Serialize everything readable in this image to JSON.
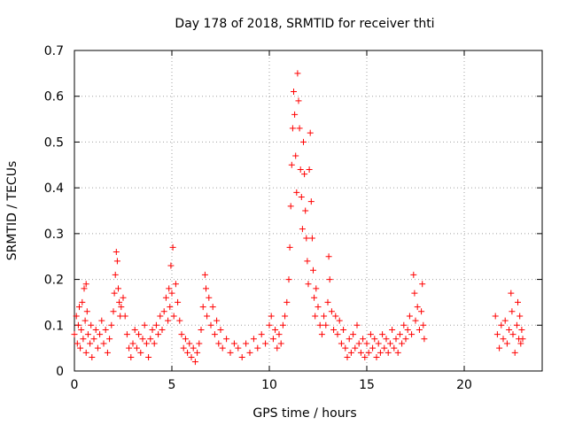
{
  "chart_data": {
    "type": "scatter",
    "title": "Day 178 of 2018, SRMTID for receiver thti",
    "xlabel": "GPS time / hours",
    "ylabel": "SRMTID / TECUs",
    "xlim": [
      0,
      24
    ],
    "ylim": [
      0,
      0.7
    ],
    "xticks": [
      0,
      5,
      10,
      15,
      20
    ],
    "xtick_labels": [
      "0",
      "5",
      "10",
      "15",
      "20"
    ],
    "yticks": [
      0,
      0.1,
      0.2,
      0.3,
      0.4,
      0.5,
      0.6,
      0.7
    ],
    "ytick_labels": [
      "0",
      "0.1",
      "0.2",
      "0.3",
      "0.4",
      "0.5",
      "0.6",
      "0.7"
    ],
    "grid": true,
    "marker": "+",
    "marker_color": "#ff0000",
    "series": [
      {
        "name": "SRMTID",
        "points": [
          [
            0.0,
            0.08
          ],
          [
            0.1,
            0.12
          ],
          [
            0.15,
            0.06
          ],
          [
            0.2,
            0.1
          ],
          [
            0.25,
            0.14
          ],
          [
            0.3,
            0.05
          ],
          [
            0.35,
            0.09
          ],
          [
            0.4,
            0.15
          ],
          [
            0.45,
            0.07
          ],
          [
            0.5,
            0.18
          ],
          [
            0.55,
            0.11
          ],
          [
            0.6,
            0.04
          ],
          [
            0.6,
            0.19
          ],
          [
            0.65,
            0.13
          ],
          [
            0.7,
            0.08
          ],
          [
            0.8,
            0.06
          ],
          [
            0.85,
            0.1
          ],
          [
            0.9,
            0.03
          ],
          [
            1.0,
            0.07
          ],
          [
            1.1,
            0.09
          ],
          [
            1.2,
            0.05
          ],
          [
            1.3,
            0.08
          ],
          [
            1.4,
            0.11
          ],
          [
            1.5,
            0.06
          ],
          [
            1.6,
            0.09
          ],
          [
            1.7,
            0.04
          ],
          [
            1.8,
            0.07
          ],
          [
            1.9,
            0.1
          ],
          [
            2.0,
            0.13
          ],
          [
            2.05,
            0.17
          ],
          [
            2.1,
            0.21
          ],
          [
            2.15,
            0.26
          ],
          [
            2.2,
            0.24
          ],
          [
            2.25,
            0.18
          ],
          [
            2.3,
            0.15
          ],
          [
            2.35,
            0.12
          ],
          [
            2.4,
            0.14
          ],
          [
            2.5,
            0.16
          ],
          [
            2.6,
            0.12
          ],
          [
            2.7,
            0.08
          ],
          [
            2.8,
            0.05
          ],
          [
            2.9,
            0.03
          ],
          [
            3.0,
            0.06
          ],
          [
            3.1,
            0.09
          ],
          [
            3.2,
            0.05
          ],
          [
            3.3,
            0.08
          ],
          [
            3.4,
            0.04
          ],
          [
            3.5,
            0.07
          ],
          [
            3.6,
            0.1
          ],
          [
            3.7,
            0.06
          ],
          [
            3.8,
            0.03
          ],
          [
            3.9,
            0.07
          ],
          [
            4.0,
            0.09
          ],
          [
            4.1,
            0.06
          ],
          [
            4.2,
            0.1
          ],
          [
            4.3,
            0.08
          ],
          [
            4.4,
            0.12
          ],
          [
            4.5,
            0.09
          ],
          [
            4.6,
            0.13
          ],
          [
            4.7,
            0.16
          ],
          [
            4.8,
            0.11
          ],
          [
            4.85,
            0.18
          ],
          [
            4.9,
            0.14
          ],
          [
            4.95,
            0.23
          ],
          [
            5.0,
            0.17
          ],
          [
            5.05,
            0.27
          ],
          [
            5.1,
            0.12
          ],
          [
            5.2,
            0.19
          ],
          [
            5.3,
            0.15
          ],
          [
            5.4,
            0.11
          ],
          [
            5.5,
            0.08
          ],
          [
            5.6,
            0.05
          ],
          [
            5.7,
            0.07
          ],
          [
            5.8,
            0.04
          ],
          [
            5.9,
            0.06
          ],
          [
            6.0,
            0.03
          ],
          [
            6.1,
            0.05
          ],
          [
            6.2,
            0.02
          ],
          [
            6.3,
            0.04
          ],
          [
            6.4,
            0.06
          ],
          [
            6.5,
            0.09
          ],
          [
            6.6,
            0.14
          ],
          [
            6.7,
            0.21
          ],
          [
            6.75,
            0.18
          ],
          [
            6.8,
            0.12
          ],
          [
            6.9,
            0.16
          ],
          [
            7.0,
            0.1
          ],
          [
            7.1,
            0.14
          ],
          [
            7.2,
            0.08
          ],
          [
            7.3,
            0.11
          ],
          [
            7.4,
            0.06
          ],
          [
            7.5,
            0.09
          ],
          [
            7.6,
            0.05
          ],
          [
            7.8,
            0.07
          ],
          [
            8.0,
            0.04
          ],
          [
            8.2,
            0.06
          ],
          [
            8.4,
            0.05
          ],
          [
            8.6,
            0.03
          ],
          [
            8.8,
            0.06
          ],
          [
            9.0,
            0.04
          ],
          [
            9.2,
            0.07
          ],
          [
            9.4,
            0.05
          ],
          [
            9.6,
            0.08
          ],
          [
            9.8,
            0.06
          ],
          [
            10.0,
            0.1
          ],
          [
            10.1,
            0.12
          ],
          [
            10.2,
            0.07
          ],
          [
            10.3,
            0.09
          ],
          [
            10.4,
            0.05
          ],
          [
            10.5,
            0.08
          ],
          [
            10.6,
            0.06
          ],
          [
            10.7,
            0.1
          ],
          [
            10.8,
            0.12
          ],
          [
            10.9,
            0.15
          ],
          [
            11.0,
            0.2
          ],
          [
            11.05,
            0.27
          ],
          [
            11.1,
            0.36
          ],
          [
            11.15,
            0.45
          ],
          [
            11.2,
            0.53
          ],
          [
            11.25,
            0.61
          ],
          [
            11.3,
            0.56
          ],
          [
            11.35,
            0.47
          ],
          [
            11.4,
            0.39
          ],
          [
            11.45,
            0.65
          ],
          [
            11.5,
            0.59
          ],
          [
            11.55,
            0.53
          ],
          [
            11.6,
            0.44
          ],
          [
            11.65,
            0.38
          ],
          [
            11.7,
            0.31
          ],
          [
            11.75,
            0.5
          ],
          [
            11.8,
            0.43
          ],
          [
            11.85,
            0.35
          ],
          [
            11.9,
            0.29
          ],
          [
            11.95,
            0.24
          ],
          [
            12.0,
            0.19
          ],
          [
            12.05,
            0.44
          ],
          [
            12.1,
            0.52
          ],
          [
            12.15,
            0.37
          ],
          [
            12.2,
            0.29
          ],
          [
            12.25,
            0.22
          ],
          [
            12.3,
            0.16
          ],
          [
            12.35,
            0.12
          ],
          [
            12.4,
            0.18
          ],
          [
            12.5,
            0.14
          ],
          [
            12.6,
            0.1
          ],
          [
            12.7,
            0.08
          ],
          [
            12.8,
            0.12
          ],
          [
            12.9,
            0.1
          ],
          [
            13.0,
            0.15
          ],
          [
            13.05,
            0.25
          ],
          [
            13.1,
            0.2
          ],
          [
            13.2,
            0.13
          ],
          [
            13.3,
            0.09
          ],
          [
            13.4,
            0.12
          ],
          [
            13.5,
            0.08
          ],
          [
            13.6,
            0.11
          ],
          [
            13.7,
            0.06
          ],
          [
            13.8,
            0.09
          ],
          [
            13.9,
            0.05
          ],
          [
            14.0,
            0.03
          ],
          [
            14.1,
            0.07
          ],
          [
            14.2,
            0.04
          ],
          [
            14.3,
            0.08
          ],
          [
            14.4,
            0.05
          ],
          [
            14.5,
            0.1
          ],
          [
            14.6,
            0.06
          ],
          [
            14.7,
            0.04
          ],
          [
            14.8,
            0.07
          ],
          [
            14.9,
            0.03
          ],
          [
            15.0,
            0.06
          ],
          [
            15.1,
            0.04
          ],
          [
            15.2,
            0.08
          ],
          [
            15.3,
            0.05
          ],
          [
            15.4,
            0.07
          ],
          [
            15.5,
            0.03
          ],
          [
            15.6,
            0.06
          ],
          [
            15.7,
            0.04
          ],
          [
            15.8,
            0.08
          ],
          [
            15.9,
            0.05
          ],
          [
            16.0,
            0.07
          ],
          [
            16.1,
            0.04
          ],
          [
            16.2,
            0.06
          ],
          [
            16.3,
            0.09
          ],
          [
            16.4,
            0.05
          ],
          [
            16.5,
            0.07
          ],
          [
            16.6,
            0.04
          ],
          [
            16.7,
            0.08
          ],
          [
            16.8,
            0.06
          ],
          [
            16.9,
            0.1
          ],
          [
            17.0,
            0.07
          ],
          [
            17.1,
            0.09
          ],
          [
            17.2,
            0.12
          ],
          [
            17.3,
            0.08
          ],
          [
            17.4,
            0.21
          ],
          [
            17.45,
            0.17
          ],
          [
            17.5,
            0.11
          ],
          [
            17.6,
            0.14
          ],
          [
            17.7,
            0.09
          ],
          [
            17.8,
            0.13
          ],
          [
            17.85,
            0.19
          ],
          [
            17.9,
            0.1
          ],
          [
            17.95,
            0.07
          ],
          [
            21.6,
            0.12
          ],
          [
            21.7,
            0.08
          ],
          [
            21.8,
            0.05
          ],
          [
            21.9,
            0.1
          ],
          [
            22.0,
            0.07
          ],
          [
            22.1,
            0.11
          ],
          [
            22.2,
            0.06
          ],
          [
            22.3,
            0.09
          ],
          [
            22.4,
            0.17
          ],
          [
            22.45,
            0.13
          ],
          [
            22.5,
            0.08
          ],
          [
            22.6,
            0.04
          ],
          [
            22.7,
            0.1
          ],
          [
            22.75,
            0.15
          ],
          [
            22.8,
            0.07
          ],
          [
            22.85,
            0.12
          ],
          [
            22.9,
            0.06
          ],
          [
            22.95,
            0.09
          ],
          [
            23.0,
            0.07
          ]
        ]
      }
    ]
  }
}
